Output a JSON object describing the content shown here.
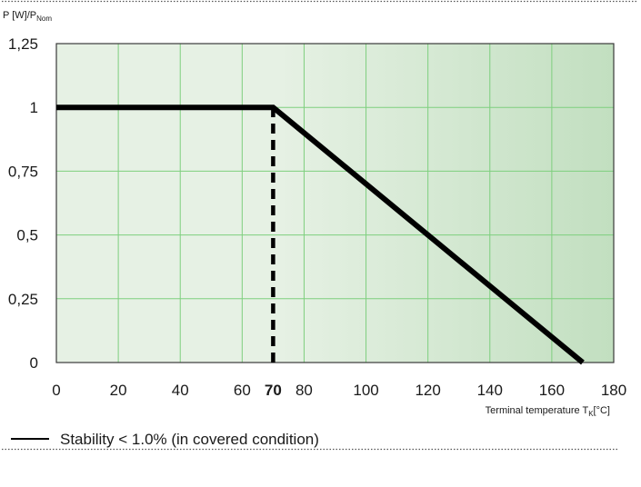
{
  "chart_data": {
    "type": "line",
    "ylabel_main": "P [W]/P",
    "ylabel_sub": "Nom",
    "xlabel_pre": "Terminal temperature T",
    "xlabel_sub": "K",
    "xlabel_post": "[°C]",
    "xlim": [
      0,
      180
    ],
    "ylim": [
      0,
      1.25
    ],
    "x_ticks": [
      {
        "value": 0,
        "label": "0"
      },
      {
        "value": 20,
        "label": "20"
      },
      {
        "value": 40,
        "label": "40"
      },
      {
        "value": 60,
        "label": "60"
      },
      {
        "value": 70,
        "label": "70",
        "bold": true
      },
      {
        "value": 80,
        "label": "80"
      },
      {
        "value": 100,
        "label": "100"
      },
      {
        "value": 120,
        "label": "120"
      },
      {
        "value": 140,
        "label": "140"
      },
      {
        "value": 160,
        "label": "160"
      },
      {
        "value": 180,
        "label": "180"
      }
    ],
    "y_ticks": [
      {
        "value": 0,
        "label": "0"
      },
      {
        "value": 0.25,
        "label": "0,25"
      },
      {
        "value": 0.5,
        "label": "0,5"
      },
      {
        "value": 0.75,
        "label": "0,75"
      },
      {
        "value": 1,
        "label": "1"
      },
      {
        "value": 1.25,
        "label": "1,25"
      }
    ],
    "x_gridlines": [
      0,
      20,
      40,
      60,
      80,
      100,
      120,
      140,
      160,
      180
    ],
    "y_gridlines": [
      0,
      0.25,
      0.5,
      0.75,
      1,
      1.25
    ],
    "grid": true,
    "series": [
      {
        "name": "Stability < 1.0% (in covered condition)",
        "x": [
          0,
          70,
          170
        ],
        "y": [
          1,
          1,
          0
        ]
      }
    ],
    "reference_line": {
      "x": 70,
      "y_from": 0,
      "y_to": 1,
      "style": "dashed"
    },
    "legend_position": "bottom-left",
    "colors": {
      "line": "#000000",
      "grid": "#7ecf7e",
      "bg_light": "#e6f1e4",
      "bg_dark": "#c2dfc0",
      "border": "#3a3a3a"
    }
  }
}
